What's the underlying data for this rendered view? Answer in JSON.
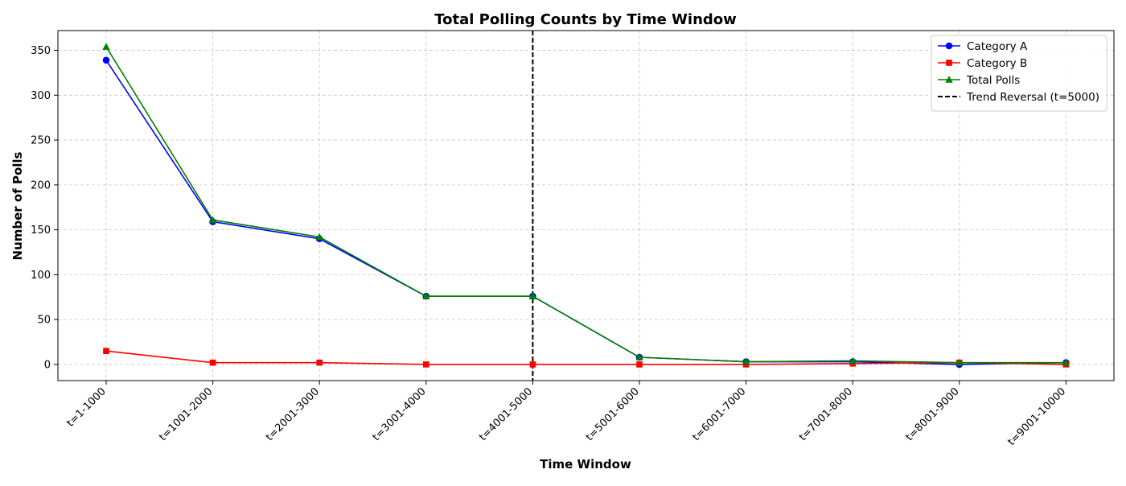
{
  "chart_data": {
    "type": "line",
    "title": "Total Polling Counts by Time Window",
    "xlabel": "Time Window",
    "ylabel": "Number of Polls",
    "categories": [
      "t=1-1000",
      "t=1001-2000",
      "t=2001-3000",
      "t=3001-4000",
      "t=4001-5000",
      "t=5001-6000",
      "t=6001-7000",
      "t=7001-8000",
      "t=8001-9000",
      "t=9001-10000"
    ],
    "series": [
      {
        "name": "Category A",
        "color": "#0000ff",
        "marker": "circle",
        "values": [
          339,
          159,
          140,
          76,
          76,
          8,
          3,
          3,
          0,
          2
        ]
      },
      {
        "name": "Category B",
        "color": "#ff0000",
        "marker": "square",
        "values": [
          15,
          2,
          2,
          0,
          0,
          0,
          0,
          1,
          2,
          0
        ]
      },
      {
        "name": "Total Polls",
        "color": "#008000",
        "marker": "triangle",
        "values": [
          354,
          161,
          142,
          76,
          76,
          8,
          3,
          4,
          2,
          2
        ]
      }
    ],
    "reference_line": {
      "name": "Trend Reversal (t=5000)",
      "category": "t=4001-5000",
      "color": "#000000",
      "style": "dashed"
    },
    "ylim": [
      -18,
      372
    ],
    "yticks": [
      0,
      50,
      100,
      150,
      200,
      250,
      300,
      350
    ],
    "grid": true,
    "legend_position": "top-right"
  }
}
